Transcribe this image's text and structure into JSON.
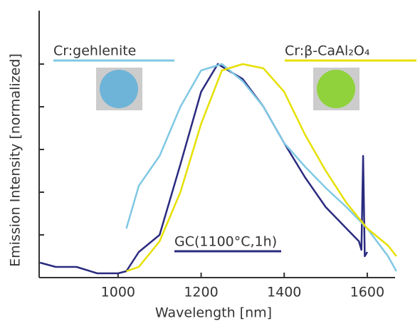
{
  "chart_data": {
    "type": "line",
    "xlabel": "Wavelength [nm]",
    "ylabel": "Emission Intensity [normalized]",
    "xlim": [
      810,
      1667
    ],
    "xticks": [
      1000,
      1200,
      1400,
      1600
    ],
    "ylim": [
      0,
      1.25
    ],
    "yticks": [
      0.2,
      0.4,
      0.6,
      0.8,
      1.0
    ],
    "series": [
      {
        "name": "GC(1100°C,1h)",
        "color": "#2b2b80",
        "x": [
          812,
          850,
          900,
          950,
          1000,
          1020,
          1050,
          1100,
          1150,
          1200,
          1240,
          1300,
          1350,
          1400,
          1450,
          1500,
          1550,
          1580,
          1586,
          1590,
          1594,
          1600
        ],
        "values": [
          0.07,
          0.05,
          0.05,
          0.02,
          0.02,
          0.03,
          0.12,
          0.2,
          0.53,
          0.87,
          1.0,
          0.93,
          0.8,
          0.63,
          0.47,
          0.33,
          0.23,
          0.17,
          0.13,
          0.57,
          0.1,
          0.12
        ]
      },
      {
        "name": "Cr:gehlenite",
        "color": "#80c8e4",
        "x": [
          1020,
          1050,
          1100,
          1150,
          1200,
          1250,
          1300,
          1350,
          1400,
          1450,
          1500,
          1550,
          1600,
          1650,
          1670
        ],
        "values": [
          0.23,
          0.43,
          0.57,
          0.8,
          0.97,
          1.0,
          0.92,
          0.8,
          0.63,
          0.52,
          0.42,
          0.33,
          0.23,
          0.1,
          0.03
        ]
      },
      {
        "name": "Cr:β-CaAl₂O₄",
        "color": "#e6e000",
        "x": [
          1020,
          1050,
          1100,
          1150,
          1200,
          1250,
          1300,
          1350,
          1400,
          1450,
          1500,
          1550,
          1600,
          1650,
          1670
        ],
        "values": [
          0.03,
          0.05,
          0.17,
          0.4,
          0.72,
          0.97,
          1.0,
          0.98,
          0.87,
          0.67,
          0.5,
          0.35,
          0.23,
          0.15,
          0.1
        ]
      }
    ]
  }
}
